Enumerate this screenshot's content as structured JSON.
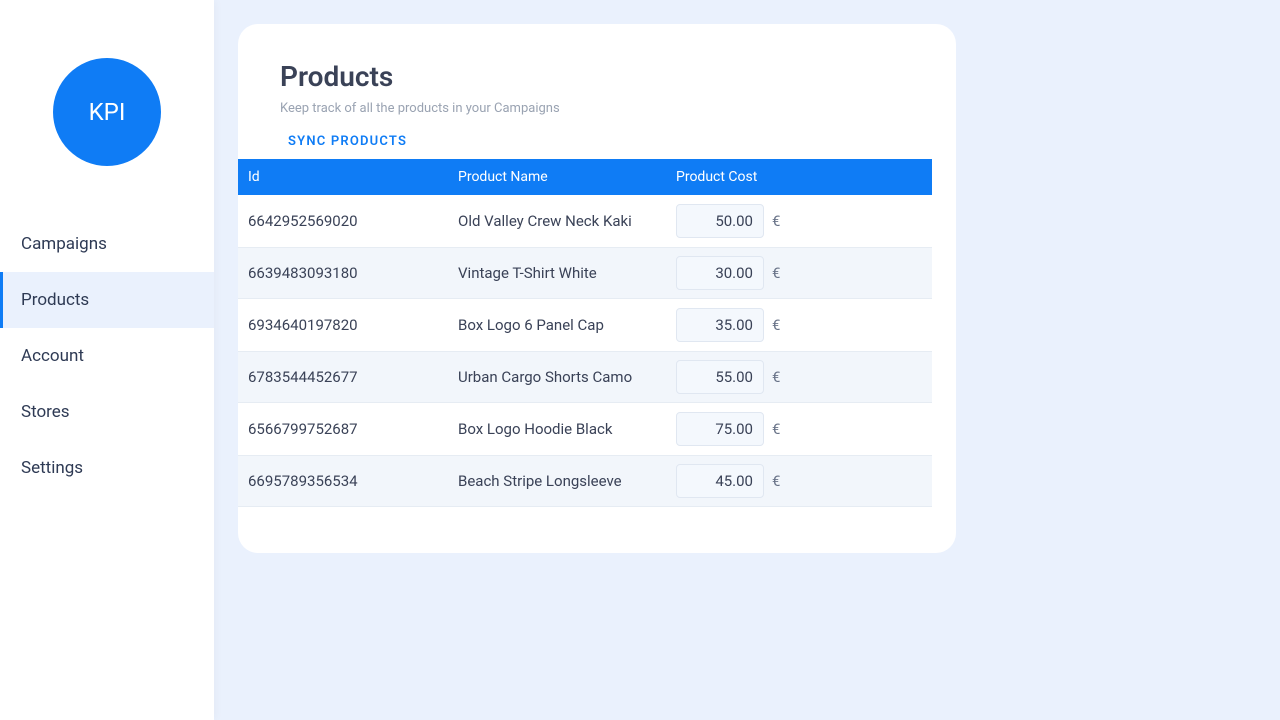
{
  "sidebar": {
    "logo_text": "KPI",
    "items": [
      {
        "label": "Campaigns",
        "active": false
      },
      {
        "label": "Products",
        "active": true
      },
      {
        "label": "Account",
        "active": false
      },
      {
        "label": "Stores",
        "active": false
      },
      {
        "label": "Settings",
        "active": false
      }
    ]
  },
  "main": {
    "title": "Products",
    "subtitle": "Keep track of all the products in your Campaigns",
    "sync_label": "SYNC PRODUCTS",
    "table": {
      "columns": {
        "id": "Id",
        "name": "Product Name",
        "cost": "Product Cost"
      },
      "currency_symbol": "€",
      "rows": [
        {
          "id": "6642952569020",
          "name": "Old Valley Crew Neck Kaki",
          "cost": "50.00"
        },
        {
          "id": "6639483093180",
          "name": "Vintage T-Shirt White",
          "cost": "30.00"
        },
        {
          "id": "6934640197820",
          "name": "Box Logo 6 Panel Cap",
          "cost": "35.00"
        },
        {
          "id": "6783544452677",
          "name": "Urban Cargo Shorts Camo",
          "cost": "55.00"
        },
        {
          "id": "6566799752687",
          "name": "Box Logo Hoodie Black",
          "cost": "75.00"
        },
        {
          "id": "6695789356534",
          "name": "Beach Stripe Longsleeve",
          "cost": "45.00"
        }
      ]
    }
  },
  "colors": {
    "accent": "#0f7cf5",
    "page_bg": "#eaf1fd",
    "card_bg": "#ffffff",
    "row_alt_bg": "#f2f6fb",
    "text_primary": "#3a4257",
    "text_muted": "#9aa3b2",
    "input_bg": "#f4f8fd",
    "input_border": "#e0e7f1"
  }
}
